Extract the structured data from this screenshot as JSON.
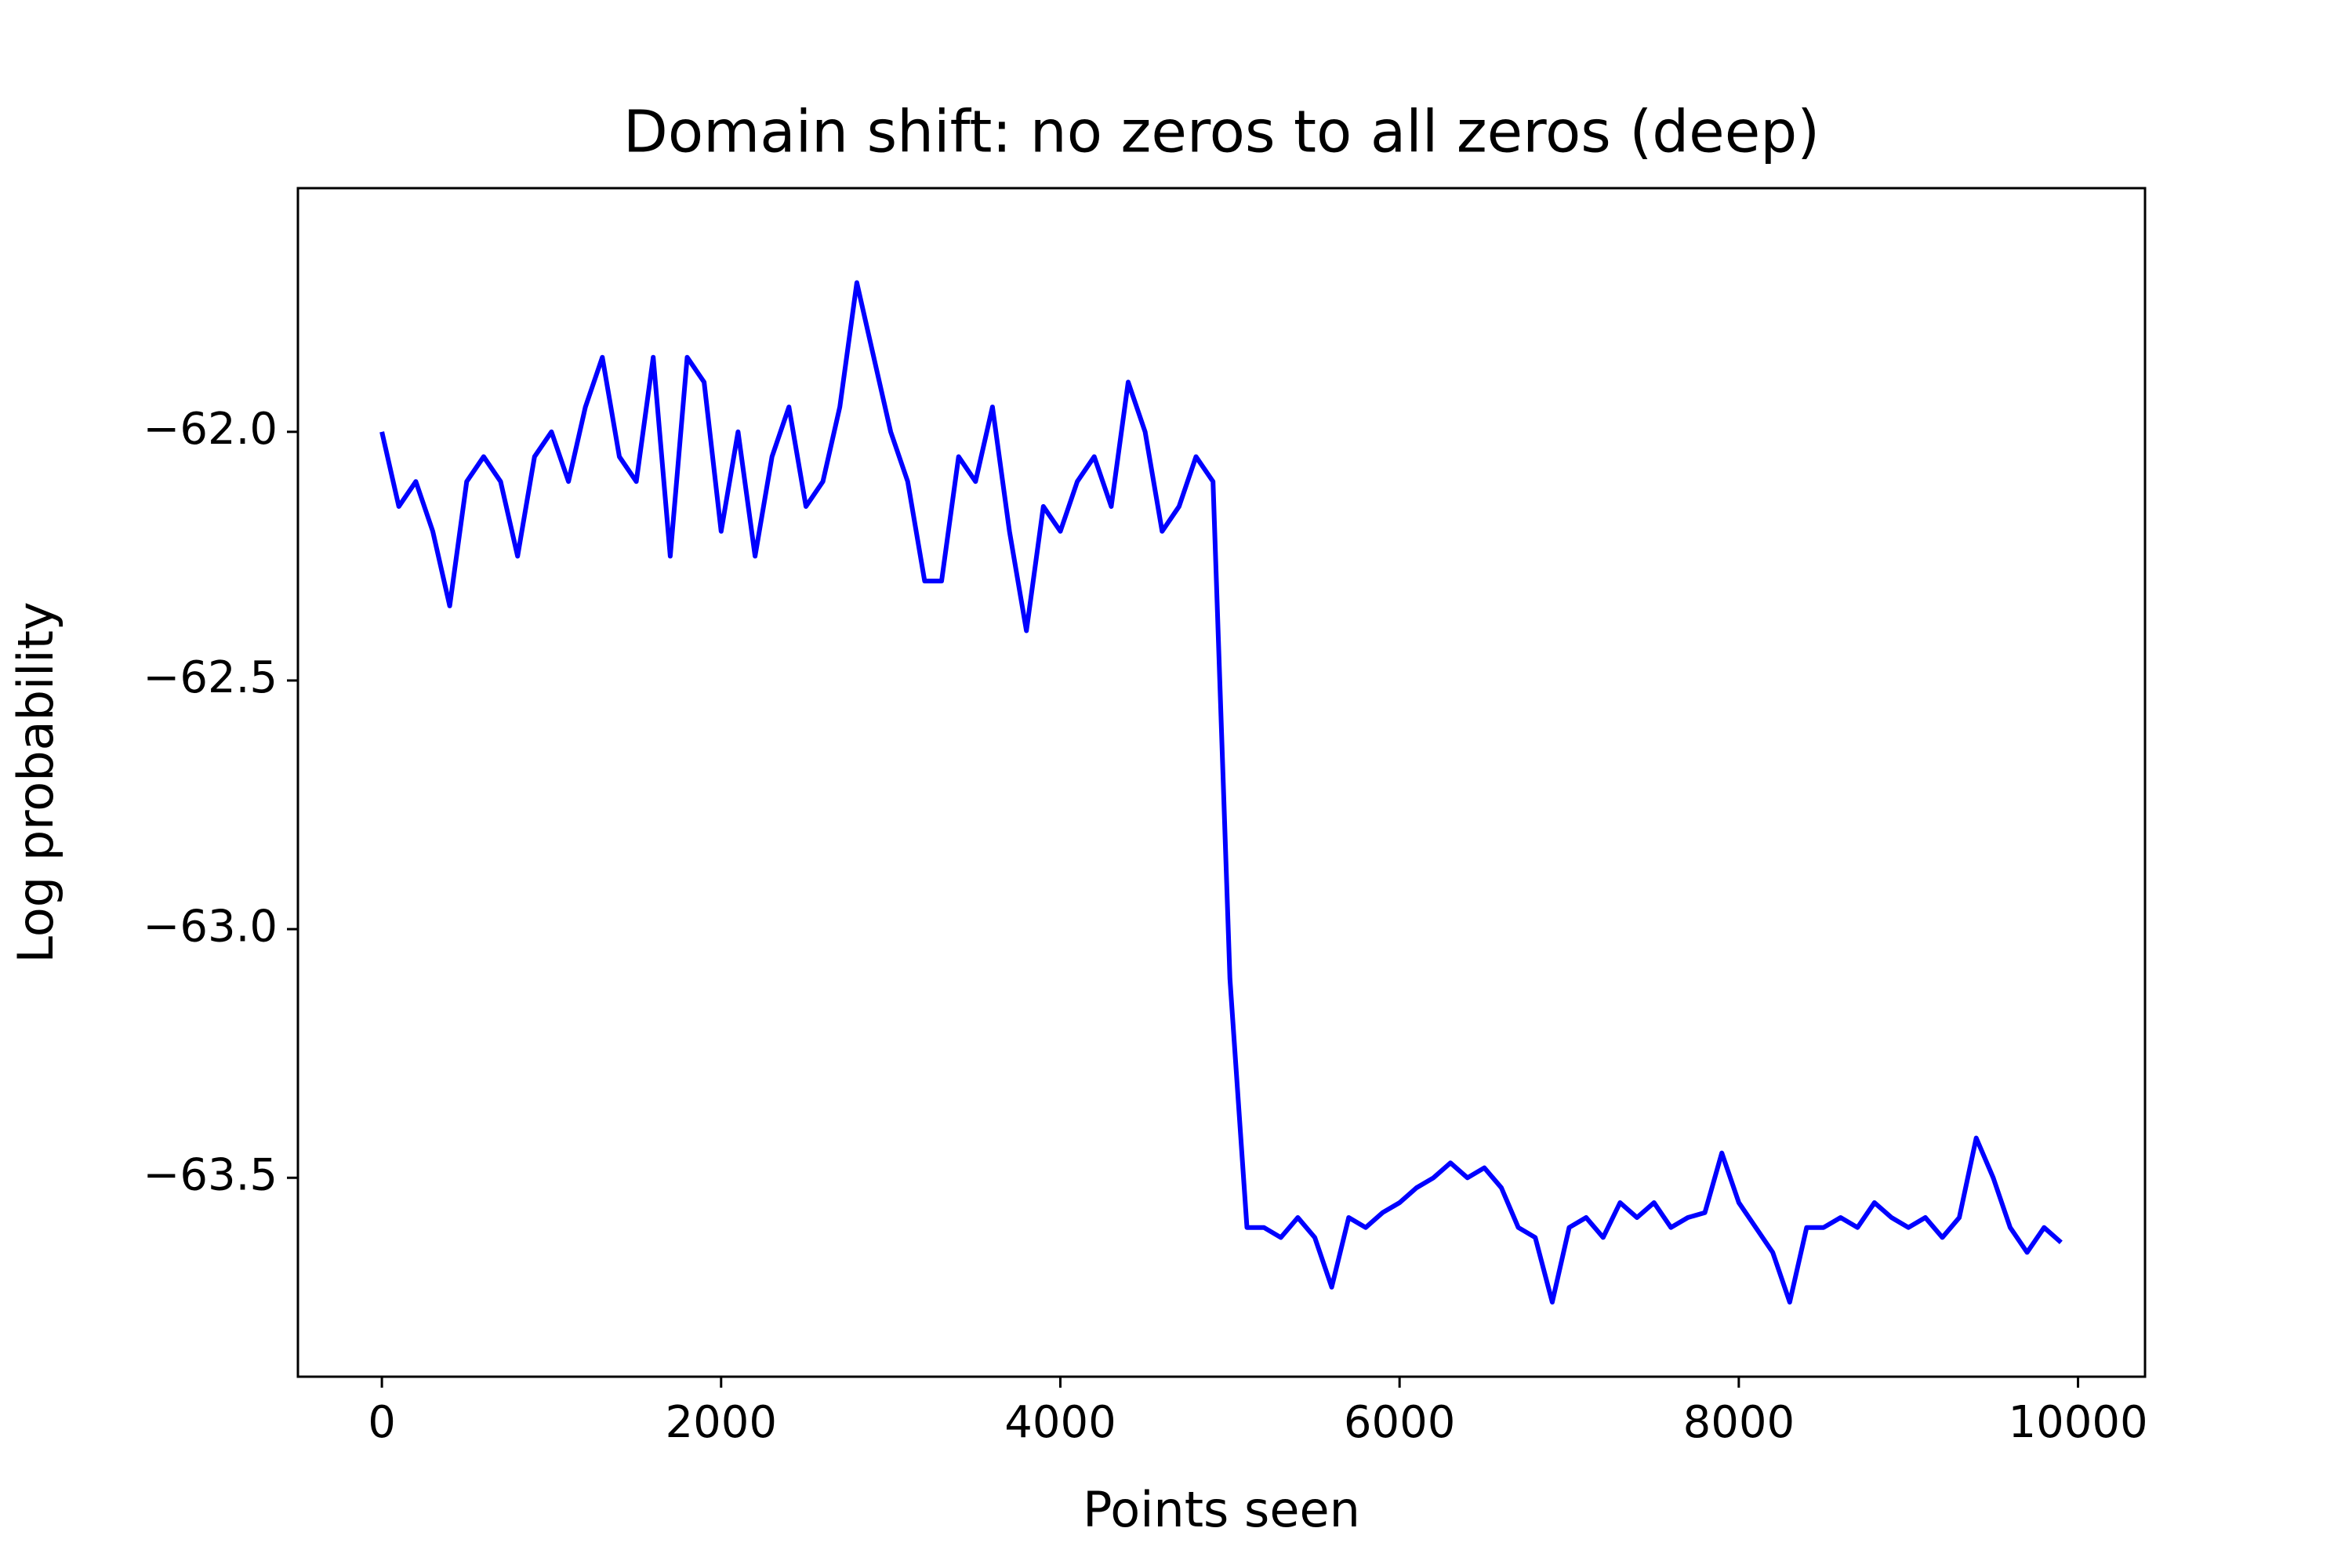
{
  "chart_data": {
    "type": "line",
    "title": "Domain shift: no zeros to all zeros (deep)",
    "xlabel": "Points seen",
    "ylabel": "Log probability",
    "x": [
      0,
      100,
      200,
      300,
      400,
      500,
      600,
      700,
      800,
      900,
      1000,
      1100,
      1200,
      1300,
      1400,
      1500,
      1600,
      1700,
      1800,
      1900,
      2000,
      2100,
      2200,
      2300,
      2400,
      2500,
      2600,
      2700,
      2800,
      2900,
      3000,
      3100,
      3200,
      3300,
      3400,
      3500,
      3600,
      3700,
      3800,
      3900,
      4000,
      4100,
      4200,
      4300,
      4400,
      4500,
      4600,
      4700,
      4800,
      4900,
      5000,
      5100,
      5200,
      5300,
      5400,
      5500,
      5600,
      5700,
      5800,
      5900,
      6000,
      6100,
      6200,
      6300,
      6400,
      6500,
      6600,
      6700,
      6800,
      6900,
      7000,
      7100,
      7200,
      7300,
      7400,
      7500,
      7600,
      7700,
      7800,
      7900,
      8000,
      8100,
      8200,
      8300,
      8400,
      8500,
      8600,
      8700,
      8800,
      8900,
      9000,
      9100,
      9200,
      9300,
      9400,
      9500,
      9600,
      9700,
      9800,
      9900
    ],
    "series": [
      {
        "name": "Log probability",
        "color": "#0000ff",
        "values": [
          -62.0,
          -62.15,
          -62.1,
          -62.2,
          -62.35,
          -62.1,
          -62.05,
          -62.1,
          -62.25,
          -62.05,
          -62.0,
          -62.1,
          -61.95,
          -61.85,
          -62.05,
          -62.1,
          -61.85,
          -62.25,
          -61.85,
          -61.9,
          -62.2,
          -62.0,
          -62.25,
          -62.05,
          -61.95,
          -62.15,
          -62.1,
          -61.95,
          -61.7,
          -61.85,
          -62.0,
          -62.1,
          -62.3,
          -62.3,
          -62.05,
          -62.1,
          -61.95,
          -62.2,
          -62.4,
          -62.15,
          -62.2,
          -62.1,
          -62.05,
          -62.15,
          -61.9,
          -62.0,
          -62.2,
          -62.15,
          -62.05,
          -62.1,
          -63.1,
          -63.6,
          -63.6,
          -63.62,
          -63.58,
          -63.62,
          -63.72,
          -63.58,
          -63.6,
          -63.57,
          -63.55,
          -63.52,
          -63.5,
          -63.47,
          -63.5,
          -63.48,
          -63.52,
          -63.6,
          -63.62,
          -63.75,
          -63.6,
          -63.58,
          -63.62,
          -63.55,
          -63.58,
          -63.55,
          -63.6,
          -63.58,
          -63.57,
          -63.45,
          -63.55,
          -63.6,
          -63.65,
          -63.75,
          -63.6,
          -63.6,
          -63.58,
          -63.6,
          -63.55,
          -63.58,
          -63.6,
          -63.58,
          -63.62,
          -63.58,
          -63.42,
          -63.5,
          -63.6,
          -63.65,
          -63.6,
          -63.63
        ]
      }
    ],
    "xlim": [
      -495,
      10395
    ],
    "ylim": [
      -63.9,
      -61.51
    ],
    "xticks": [
      0,
      2000,
      4000,
      6000,
      8000,
      10000
    ],
    "yticks": [
      {
        "value": -63.5,
        "label": "−63.5"
      },
      {
        "value": -63.0,
        "label": "−63.0"
      },
      {
        "value": -62.5,
        "label": "−62.5"
      },
      {
        "value": -62.0,
        "label": "−62.0"
      }
    ],
    "grid": false
  }
}
